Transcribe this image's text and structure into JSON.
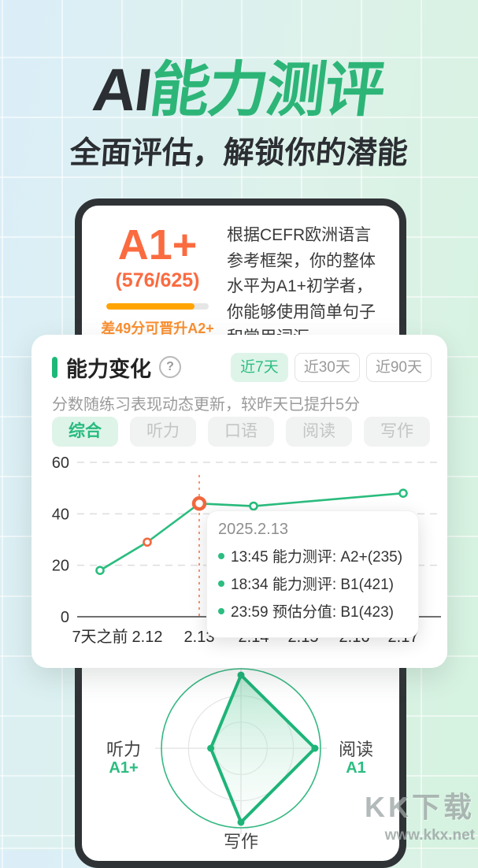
{
  "hero": {
    "title_prefix": "AI",
    "title_main": "能力测评",
    "subtitle": "全面评估，解锁你的潜能"
  },
  "summary_card": {
    "level": "A1+",
    "score": "(576/625)",
    "progress_percent": 86,
    "progress_note": "差49分可晋升A2+",
    "description": "根据CEFR欧洲语言参考框架，你的整体水平为A1+初学者，你能够使用简单句子和常用词汇。"
  },
  "panel": {
    "title": "能力变化",
    "help": "?",
    "range_tabs": [
      {
        "label": "近7天",
        "active": true
      },
      {
        "label": "近30天",
        "active": false
      },
      {
        "label": "近90天",
        "active": false
      }
    ],
    "subtitle": "分数随练习表现动态更新，较昨天已提升5分",
    "skill_tabs": [
      {
        "label": "综合",
        "active": true
      },
      {
        "label": "听力",
        "active": false
      },
      {
        "label": "口语",
        "active": false
      },
      {
        "label": "阅读",
        "active": false
      },
      {
        "label": "写作",
        "active": false
      }
    ],
    "tooltip": {
      "date": "2025.2.13",
      "rows": [
        "13:45 能力测评: A2+(235)",
        "18:34 能力测评: B1(421)",
        "23:59 预估分值: B1(423)"
      ]
    }
  },
  "chart_data": [
    {
      "type": "line",
      "title": "能力变化（综合，近7天）",
      "x": [
        "7天之前",
        "2.12",
        "2.13",
        "2.14",
        "2.15",
        "2.16",
        "2.17"
      ],
      "series": [
        {
          "name": "综合",
          "values": [
            18,
            29,
            44,
            43,
            null,
            null,
            48
          ]
        }
      ],
      "note": "values at 2.15/2.16 not marked; line runs straight 2.14→2.17",
      "ylim": [
        0,
        60
      ],
      "yticks": [
        0,
        20,
        40,
        60
      ],
      "grid": "dashed horizontal",
      "highlight_x": "2.13",
      "point_colors": [
        "green",
        "orange",
        "orange-large",
        "green",
        "none",
        "none",
        "green"
      ]
    },
    {
      "type": "radar",
      "rings": 3,
      "axes": [
        {
          "position": "top",
          "label": "",
          "level": ""
        },
        {
          "position": "right",
          "label": "阅读",
          "level": "A1"
        },
        {
          "position": "bottom",
          "label": "写作",
          "level": ""
        },
        {
          "position": "left",
          "label": "听力",
          "level": "A1+"
        }
      ],
      "values_fraction": [
        0.92,
        0.93,
        0.93,
        0.38
      ]
    }
  ],
  "colors": {
    "accent_green": "#2cbd80",
    "mint_bg": "#def4e9",
    "title_green": "#2db578",
    "dark": "#2b2e32",
    "orange_level": "#fa6b40",
    "amber_bar": "#ffa400",
    "highlight_orange": "#f2683f",
    "gray_text": "#9b9b9b"
  },
  "watermark": {
    "line1": "KK下载",
    "line2": "www.kkx.net"
  }
}
